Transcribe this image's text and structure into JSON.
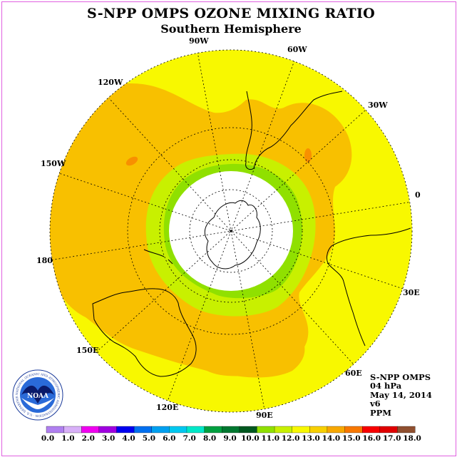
{
  "title": "S-NPP OMPS OZONE MIXING RATIO",
  "subtitle": "Southern Hemisphere",
  "longitude_labels": {
    "lon_90w": "90W",
    "lon_60w": "60W",
    "lon_30w": "30W",
    "lon_0": "0",
    "lon_30e": "30E",
    "lon_60e": "60E",
    "lon_90e": "90E",
    "lon_120e": "120E",
    "lon_150e": "150E",
    "lon_180": "180",
    "lon_150w": "150W",
    "lon_120w": "120W"
  },
  "info": {
    "instrument": "S-NPP OMPS",
    "level": "04 hPa",
    "date": "May 14, 2014",
    "version": "v6",
    "units": "PPM"
  },
  "logo": {
    "text": "NOAA",
    "ring_text": "NATIONAL OCEANIC AND ATMOSPHERIC ADMINISTRATION · U.S. DEPARTMENT OF COMMERCE"
  },
  "colorbar": {
    "colors": [
      "#b080f0",
      "#d8b0f8",
      "#f000f0",
      "#a000e0",
      "#0000f0",
      "#0070f0",
      "#00a0f0",
      "#00c8f0",
      "#00e8c8",
      "#00a040",
      "#007830",
      "#005820",
      "#90e000",
      "#c8f000",
      "#f8f800",
      "#f8d000",
      "#f8a800",
      "#f87800",
      "#f80000",
      "#e00000",
      "#905030"
    ],
    "labels": [
      "0.0",
      "1.0",
      "2.0",
      "3.0",
      "4.0",
      "5.0",
      "6.0",
      "7.0",
      "8.0",
      "9.0",
      "10.0",
      "11.0",
      "12.0",
      "13.0",
      "14.0",
      "15.0",
      "16.0",
      "17.0",
      "18.0"
    ]
  },
  "colors": {
    "background_field": "#f8f800",
    "high_field": "#f8c000",
    "peak_field": "#f89000",
    "mid_field": "#c8f000",
    "low_field": "#90e000",
    "polar_night": "#ffffff",
    "frame": "#e060e0"
  }
}
